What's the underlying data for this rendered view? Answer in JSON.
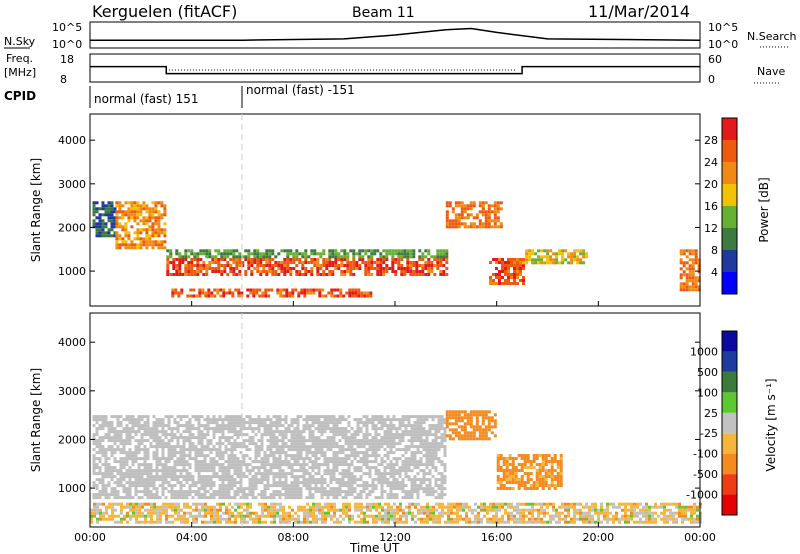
{
  "header": {
    "station": "Kerguelen (fitACF)",
    "beam": "Beam 11",
    "date": "11/Mar/2014"
  },
  "noise_panel": {
    "left_label": "N.Sky",
    "right_label": "N.Search",
    "y_ticks": [
      "10^5",
      "10^0"
    ]
  },
  "freq_panel": {
    "left_label": "Freq.",
    "left_units": "[MHz]",
    "left_ticks": [
      "18",
      "8"
    ],
    "right_label": "Nave",
    "right_ticks": [
      "60",
      "0"
    ]
  },
  "cpid": {
    "label": "CPID",
    "segments": [
      "normal (fast) 151",
      "normal (fast) -151"
    ]
  },
  "colors": {
    "power_scale": [
      "#0000ff",
      "#1e3a9e",
      "#3d7a3d",
      "#66b032",
      "#f2c200",
      "#f08a14",
      "#ef5a10",
      "#e41a1a"
    ],
    "velocity_scale": [
      "#e60000",
      "#f03c14",
      "#f58a1e",
      "#f7b53c",
      "#c2c2c2",
      "#5cc832",
      "#3a7a3a",
      "#1e3ca0",
      "#0a0aa0"
    ],
    "ground_scatter": "#bfbfbf"
  },
  "chart_data": [
    {
      "type": "heatmap",
      "name": "power",
      "ylabel": "Slant Range [km]",
      "yticks": [
        "1000",
        "2000",
        "3000",
        "4000"
      ],
      "ylim": [
        200,
        4600
      ],
      "xlim": [
        0,
        24
      ],
      "colorbar_label": "Power [dB]",
      "colorbar_ticks": [
        "4",
        "8",
        "12",
        "16",
        "20",
        "24",
        "28"
      ],
      "colorbar_range": [
        0,
        32
      ],
      "scatter_regions": [
        {
          "x": [
            0.1,
            1.0
          ],
          "y": [
            1800,
            2600
          ],
          "value": 8
        },
        {
          "x": [
            1.0,
            3.0
          ],
          "y": [
            1500,
            2600
          ],
          "value": 22
        },
        {
          "x": [
            3.0,
            14.0
          ],
          "y": [
            900,
            1300
          ],
          "value": 27
        },
        {
          "x": [
            3.0,
            14.0
          ],
          "y": [
            1300,
            1500
          ],
          "value": 12
        },
        {
          "x": [
            3.2,
            11.0
          ],
          "y": [
            400,
            600
          ],
          "value": 26
        },
        {
          "x": [
            14.0,
            16.2
          ],
          "y": [
            2000,
            2600
          ],
          "value": 24
        },
        {
          "x": [
            15.7,
            17.0
          ],
          "y": [
            700,
            1300
          ],
          "value": 26
        },
        {
          "x": [
            17.0,
            19.5
          ],
          "y": [
            1200,
            1500
          ],
          "value": 18
        },
        {
          "x": [
            23.2,
            24.0
          ],
          "y": [
            600,
            1500
          ],
          "value": 24
        }
      ]
    },
    {
      "type": "heatmap",
      "name": "velocity",
      "ylabel": "Slant Range [km]",
      "yticks": [
        "1000",
        "2000",
        "3000",
        "4000"
      ],
      "ylim": [
        200,
        4600
      ],
      "xlim": [
        0,
        24
      ],
      "xlabel": "Time UT",
      "xticks": [
        "00:00",
        "04:00",
        "08:00",
        "12:00",
        "16:00",
        "20:00",
        "00:00"
      ],
      "colorbar_label": "Velocity [m s⁻¹]",
      "colorbar_ticks": [
        "1000",
        "500",
        "100",
        "25",
        "-25",
        "-100",
        "-500",
        "-1000"
      ],
      "scatter_regions": [
        {
          "x": [
            0.1,
            14.0
          ],
          "y": [
            800,
            2500
          ],
          "value": 0,
          "ground": true
        },
        {
          "x": [
            14.0,
            16.0
          ],
          "y": [
            2000,
            2600
          ],
          "value": -200
        },
        {
          "x": [
            16.0,
            18.5
          ],
          "y": [
            1000,
            1700
          ],
          "value": -150
        },
        {
          "x": [
            0.0,
            24.0
          ],
          "y": [
            300,
            700
          ],
          "value": -40
        }
      ]
    }
  ],
  "noise_data": {
    "x": [
      0,
      6,
      10,
      12,
      14,
      15,
      16,
      18,
      24
    ],
    "y": [
      0.3,
      0.3,
      0.35,
      0.5,
      0.7,
      0.75,
      0.6,
      0.35,
      0.3
    ]
  },
  "freq_data": {
    "x": [
      0,
      3,
      3,
      17,
      17,
      24
    ],
    "y": [
      13.5,
      13.5,
      11,
      11,
      13.5,
      13.5
    ]
  }
}
